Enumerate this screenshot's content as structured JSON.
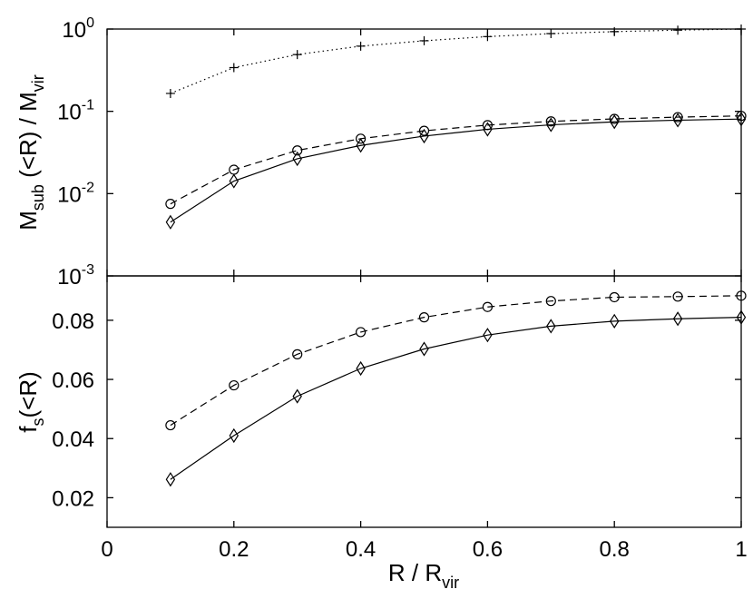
{
  "chart_data": [
    {
      "type": "line",
      "panel": "top",
      "yscale": "log",
      "ylim": [
        0.001,
        1
      ],
      "xlim": [
        0,
        1
      ],
      "ylabel": {
        "main": "M",
        "sub1": "sub",
        "mid": " (<R) / M",
        "sub2": "vir"
      },
      "ytick_labels": [
        {
          "base": "10",
          "exp": "0",
          "value": 1
        },
        {
          "base": "10",
          "exp": "-1",
          "value": 0.1
        },
        {
          "base": "10",
          "exp": "-2",
          "value": 0.01
        },
        {
          "base": "10",
          "exp": "-3",
          "value": 0.001
        }
      ],
      "x": [
        0.1,
        0.2,
        0.3,
        0.4,
        0.5,
        0.6,
        0.7,
        0.8,
        0.9,
        1.0
      ],
      "series": [
        {
          "style": "dotted",
          "marker": "plus",
          "values": [
            0.165,
            0.34,
            0.49,
            0.62,
            0.72,
            0.81,
            0.88,
            0.93,
            0.97,
            1.0
          ]
        },
        {
          "style": "dashed",
          "marker": "circle",
          "values": [
            0.0075,
            0.0195,
            0.0335,
            0.0465,
            0.058,
            0.068,
            0.0755,
            0.081,
            0.085,
            0.088
          ]
        },
        {
          "style": "solid",
          "marker": "diamond",
          "values": [
            0.0045,
            0.0142,
            0.0265,
            0.0385,
            0.05,
            0.0605,
            0.0685,
            0.0745,
            0.078,
            0.0805
          ]
        }
      ]
    },
    {
      "type": "line",
      "panel": "bottom",
      "yscale": "linear",
      "ylim": [
        0.01,
        0.095
      ],
      "xlim": [
        0,
        1
      ],
      "xlabel": {
        "main": "R / R",
        "sub": "vir"
      },
      "ylabel": {
        "main": "f",
        "sub": "s",
        "rest": "(<R)"
      },
      "xticks": [
        0,
        0.2,
        0.4,
        0.6,
        0.8,
        1
      ],
      "xtick_labels": [
        "0",
        "0.2",
        "0.4",
        "0.6",
        "0.8",
        "1"
      ],
      "yticks": [
        0.02,
        0.04,
        0.06,
        0.08
      ],
      "ytick_labels": [
        "0.02",
        "0.04",
        "0.06",
        "0.08"
      ],
      "x": [
        0.1,
        0.2,
        0.3,
        0.4,
        0.5,
        0.6,
        0.7,
        0.8,
        0.9,
        1.0
      ],
      "series": [
        {
          "style": "dashed",
          "marker": "circle",
          "values": [
            0.0445,
            0.058,
            0.0685,
            0.076,
            0.081,
            0.0845,
            0.0865,
            0.0878,
            0.088,
            0.0883
          ]
        },
        {
          "style": "solid",
          "marker": "diamond",
          "values": [
            0.0262,
            0.041,
            0.0543,
            0.0637,
            0.0703,
            0.075,
            0.078,
            0.0797,
            0.0805,
            0.081
          ]
        }
      ]
    }
  ]
}
